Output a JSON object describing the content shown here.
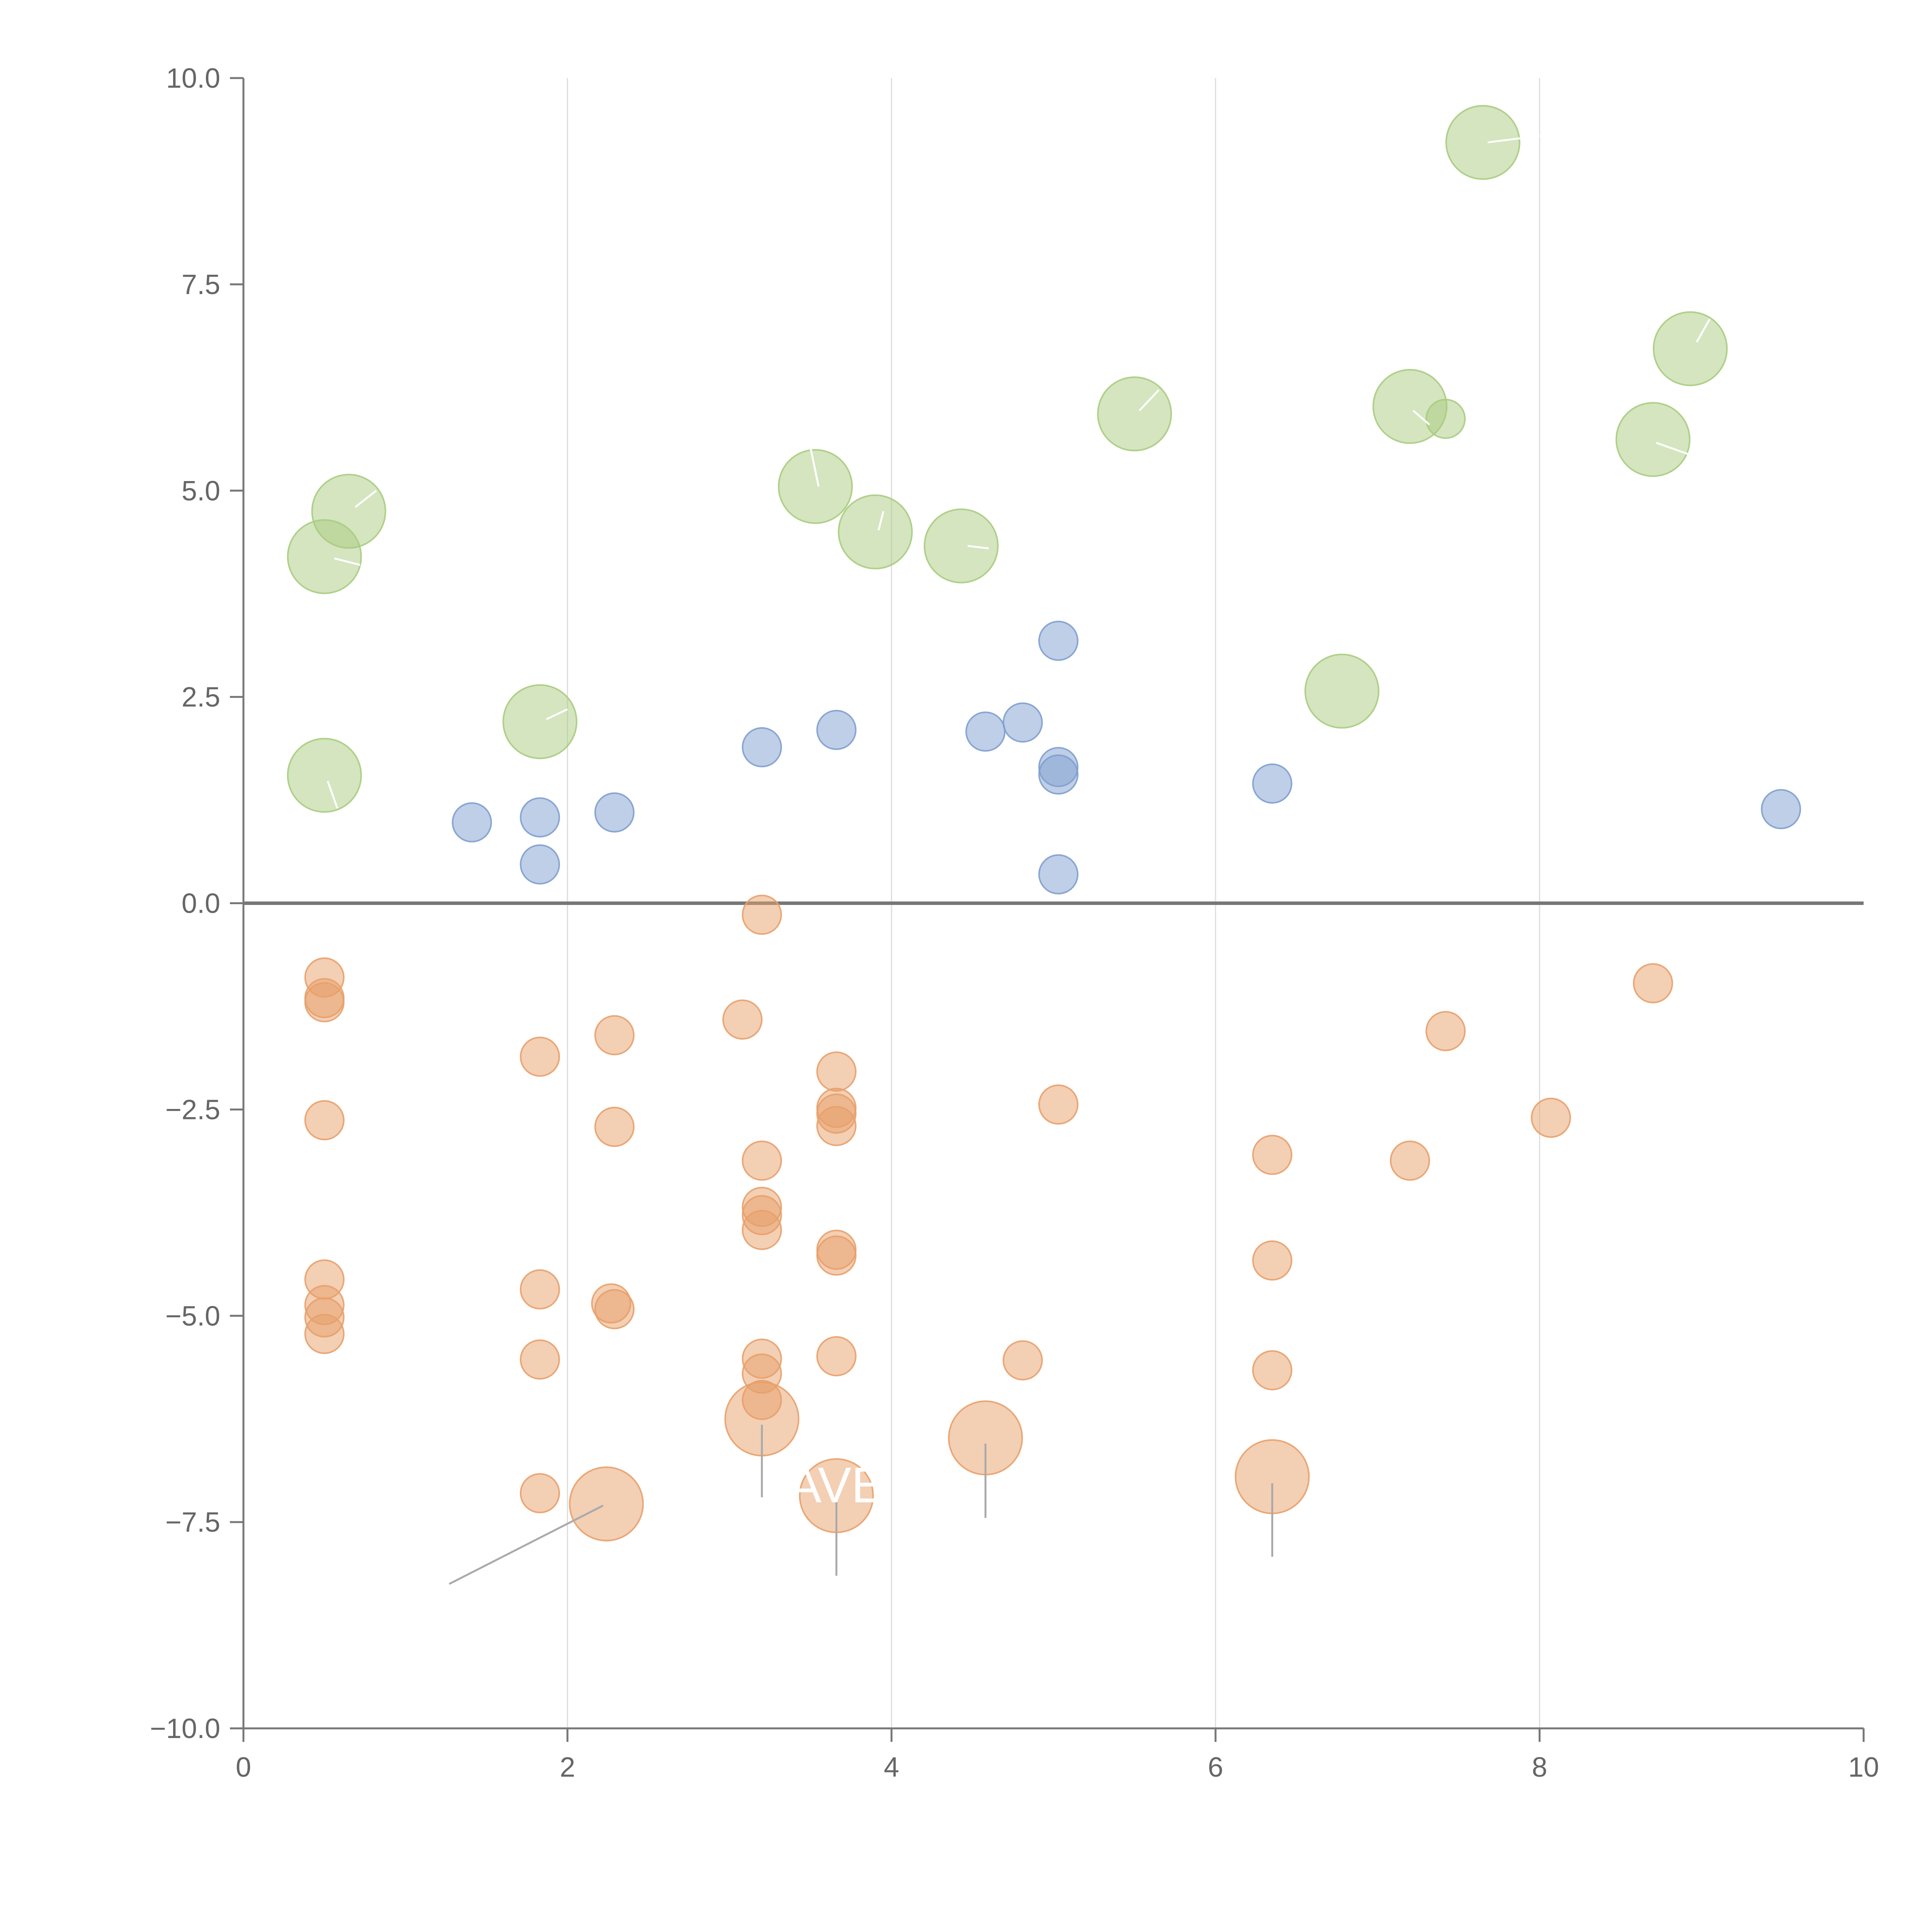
{
  "chart_data": {
    "type": "scatter",
    "title": "",
    "xlabel": "",
    "ylabel": "",
    "xlim": [
      0,
      10
    ],
    "ylim": [
      -10,
      10
    ],
    "grid": "vertical",
    "x_ticks": [
      0,
      2,
      4,
      6,
      8,
      10
    ],
    "x_tick_labels": [
      "0",
      "2",
      "4",
      "6",
      "8",
      "10"
    ],
    "y_ticks": [
      10,
      7.5,
      5,
      2.5,
      0,
      -2.5,
      -5,
      -7.5,
      -10
    ],
    "y_tick_labels": [
      "10.0",
      "7.5",
      "5.0",
      "2.5",
      "0.0",
      "−2.5",
      "−5.0",
      "−7.5",
      "−10.0"
    ],
    "colors": {
      "green": "#a9cc7f",
      "blue": "#7f9fcf",
      "orange": "#e8a06a",
      "axis": "#777777",
      "grid": "#dddddd"
    },
    "series": [
      {
        "name": "green",
        "color": "#a9cc7f",
        "points": [
          {
            "x": 0.65,
            "y": 4.75,
            "size": "large"
          },
          {
            "x": 0.5,
            "y": 4.2,
            "size": "large"
          },
          {
            "x": 0.5,
            "y": 1.55,
            "size": "large"
          },
          {
            "x": 1.83,
            "y": 2.2,
            "size": "large"
          },
          {
            "x": 3.53,
            "y": 5.05,
            "size": "large"
          },
          {
            "x": 3.9,
            "y": 4.5,
            "size": "large"
          },
          {
            "x": 4.43,
            "y": 4.33,
            "size": "large"
          },
          {
            "x": 5.5,
            "y": 5.93,
            "size": "large"
          },
          {
            "x": 6.78,
            "y": 2.57,
            "size": "large"
          },
          {
            "x": 7.2,
            "y": 6.02,
            "size": "large"
          },
          {
            "x": 7.42,
            "y": 5.87,
            "size": "small"
          },
          {
            "x": 7.65,
            "y": 9.22,
            "size": "large"
          },
          {
            "x": 8.7,
            "y": 5.62,
            "size": "large"
          },
          {
            "x": 8.93,
            "y": 6.72,
            "size": "large"
          }
        ]
      },
      {
        "name": "blue",
        "color": "#7f9fcf",
        "points": [
          {
            "x": 1.41,
            "y": 0.98,
            "size": "small"
          },
          {
            "x": 1.83,
            "y": 1.04,
            "size": "small"
          },
          {
            "x": 1.83,
            "y": 0.47,
            "size": "small"
          },
          {
            "x": 2.29,
            "y": 1.1,
            "size": "small"
          },
          {
            "x": 3.2,
            "y": 1.89,
            "size": "small"
          },
          {
            "x": 3.66,
            "y": 2.1,
            "size": "small"
          },
          {
            "x": 4.58,
            "y": 2.08,
            "size": "small"
          },
          {
            "x": 4.81,
            "y": 2.19,
            "size": "small"
          },
          {
            "x": 5.03,
            "y": 3.18,
            "size": "small"
          },
          {
            "x": 5.03,
            "y": 1.65,
            "size": "small"
          },
          {
            "x": 5.03,
            "y": 1.56,
            "size": "small"
          },
          {
            "x": 5.03,
            "y": 0.35,
            "size": "small"
          },
          {
            "x": 6.35,
            "y": 1.45,
            "size": "small"
          },
          {
            "x": 9.49,
            "y": 1.14,
            "size": "small"
          }
        ]
      },
      {
        "name": "orange",
        "color": "#e8a06a",
        "points": [
          {
            "x": 0.5,
            "y": -0.9,
            "size": "small"
          },
          {
            "x": 0.5,
            "y": -1.15,
            "size": "small"
          },
          {
            "x": 0.5,
            "y": -1.2,
            "size": "small"
          },
          {
            "x": 0.5,
            "y": -2.63,
            "size": "small"
          },
          {
            "x": 0.5,
            "y": -4.56,
            "size": "small"
          },
          {
            "x": 0.5,
            "y": -4.87,
            "size": "small"
          },
          {
            "x": 0.5,
            "y": -5.02,
            "size": "small"
          },
          {
            "x": 0.5,
            "y": -5.22,
            "size": "small"
          },
          {
            "x": 1.83,
            "y": -1.86,
            "size": "small"
          },
          {
            "x": 1.83,
            "y": -4.68,
            "size": "small"
          },
          {
            "x": 1.83,
            "y": -5.53,
            "size": "small"
          },
          {
            "x": 1.83,
            "y": -7.15,
            "size": "small"
          },
          {
            "x": 2.29,
            "y": -1.6,
            "size": "small"
          },
          {
            "x": 2.29,
            "y": -2.71,
            "size": "small"
          },
          {
            "x": 2.27,
            "y": -4.85,
            "size": "small"
          },
          {
            "x": 2.29,
            "y": -4.92,
            "size": "small"
          },
          {
            "x": 2.24,
            "y": -7.28,
            "size": "large"
          },
          {
            "x": 3.08,
            "y": -1.41,
            "size": "small"
          },
          {
            "x": 3.2,
            "y": -0.14,
            "size": "small"
          },
          {
            "x": 3.2,
            "y": -3.12,
            "size": "small"
          },
          {
            "x": 3.2,
            "y": -3.68,
            "size": "small"
          },
          {
            "x": 3.2,
            "y": -3.78,
            "size": "small"
          },
          {
            "x": 3.2,
            "y": -3.96,
            "size": "small"
          },
          {
            "x": 3.2,
            "y": -5.52,
            "size": "small"
          },
          {
            "x": 3.2,
            "y": -5.7,
            "size": "small"
          },
          {
            "x": 3.2,
            "y": -6.02,
            "size": "small"
          },
          {
            "x": 3.2,
            "y": -6.25,
            "size": "large"
          },
          {
            "x": 3.66,
            "y": -2.04,
            "size": "small"
          },
          {
            "x": 3.66,
            "y": -2.48,
            "size": "small"
          },
          {
            "x": 3.66,
            "y": -2.55,
            "size": "small"
          },
          {
            "x": 3.66,
            "y": -2.7,
            "size": "small"
          },
          {
            "x": 3.66,
            "y": -4.2,
            "size": "small"
          },
          {
            "x": 3.66,
            "y": -4.27,
            "size": "small"
          },
          {
            "x": 3.66,
            "y": -5.49,
            "size": "small"
          },
          {
            "x": 3.66,
            "y": -7.18,
            "size": "large"
          },
          {
            "x": 4.58,
            "y": -6.48,
            "size": "large"
          },
          {
            "x": 4.81,
            "y": -5.54,
            "size": "small"
          },
          {
            "x": 5.03,
            "y": -2.44,
            "size": "small"
          },
          {
            "x": 6.35,
            "y": -3.05,
            "size": "small"
          },
          {
            "x": 6.35,
            "y": -4.33,
            "size": "small"
          },
          {
            "x": 6.35,
            "y": -5.66,
            "size": "small"
          },
          {
            "x": 6.35,
            "y": -6.95,
            "size": "large"
          },
          {
            "x": 7.2,
            "y": -3.12,
            "size": "small"
          },
          {
            "x": 7.42,
            "y": -1.55,
            "size": "small"
          },
          {
            "x": 8.07,
            "y": -2.6,
            "size": "small"
          },
          {
            "x": 8.7,
            "y": -0.97,
            "size": "small"
          }
        ]
      }
    ],
    "annotations": [
      {
        "text": "AVE",
        "x": 3.66,
        "y": -7.05,
        "color": "#ffffff"
      }
    ],
    "leader_lines": [
      {
        "x1": 2.22,
        "y1": -7.3,
        "x2": 1.27,
        "y2": -8.25,
        "color": "#aaaaaa"
      },
      {
        "x1": 3.2,
        "y1": -6.32,
        "x2": 3.2,
        "y2": -7.2,
        "color": "#aaaaaa"
      },
      {
        "x1": 3.66,
        "y1": -7.25,
        "x2": 3.66,
        "y2": -8.15,
        "color": "#aaaaaa"
      },
      {
        "x1": 4.58,
        "y1": -6.55,
        "x2": 4.58,
        "y2": -7.45,
        "color": "#aaaaaa"
      },
      {
        "x1": 6.35,
        "y1": -7.03,
        "x2": 6.35,
        "y2": -7.92,
        "color": "#aaaaaa"
      },
      {
        "x1": 0.56,
        "y1": 4.18,
        "x2": 0.72,
        "y2": 4.1,
        "color": "#ffffff"
      },
      {
        "x1": 0.69,
        "y1": 4.8,
        "x2": 0.82,
        "y2": 5.0,
        "color": "#ffffff"
      },
      {
        "x1": 0.52,
        "y1": 1.48,
        "x2": 0.58,
        "y2": 1.15,
        "color": "#ffffff"
      },
      {
        "x1": 1.87,
        "y1": 2.23,
        "x2": 2.0,
        "y2": 2.35,
        "color": "#ffffff"
      },
      {
        "x1": 3.55,
        "y1": 5.05,
        "x2": 3.5,
        "y2": 5.52,
        "color": "#ffffff"
      },
      {
        "x1": 3.92,
        "y1": 4.52,
        "x2": 3.95,
        "y2": 4.75,
        "color": "#ffffff"
      },
      {
        "x1": 4.47,
        "y1": 4.33,
        "x2": 4.6,
        "y2": 4.3,
        "color": "#ffffff"
      },
      {
        "x1": 5.53,
        "y1": 5.97,
        "x2": 5.65,
        "y2": 6.22,
        "color": "#ffffff"
      },
      {
        "x1": 7.22,
        "y1": 5.97,
        "x2": 7.32,
        "y2": 5.8,
        "color": "#ffffff"
      },
      {
        "x1": 7.68,
        "y1": 9.22,
        "x2": 8.0,
        "y2": 9.3,
        "color": "#ffffff"
      },
      {
        "x1": 8.72,
        "y1": 5.58,
        "x2": 8.95,
        "y2": 5.42,
        "color": "#ffffff"
      },
      {
        "x1": 8.97,
        "y1": 6.8,
        "x2": 9.05,
        "y2": 7.08,
        "color": "#ffffff"
      }
    ]
  }
}
